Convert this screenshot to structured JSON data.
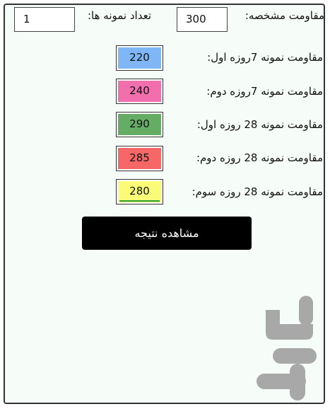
{
  "header": {
    "specified_strength_label": "مقاومت مشخصه:",
    "specified_strength_value": "300",
    "sample_count_label": "تعداد نمونه ها:",
    "sample_count_value": "1"
  },
  "samples": [
    {
      "label": "مقاومت نمونه 7روزه اول:",
      "value": "220",
      "color": "#7fb6f5"
    },
    {
      "label": "مقاومت نمونه 7روزه دوم:",
      "value": "240",
      "color": "#f26fae"
    },
    {
      "label": "مقاومت نمونه 28 روزه اول:",
      "value": "290",
      "color": "#65ad65"
    },
    {
      "label": "مقاومت نمونه 28 روزه دوم:",
      "value": "285",
      "color": "#f86767"
    },
    {
      "label": "مقاومت نمونه 28 روزه سوم:",
      "value": "280",
      "color": "#fafc78"
    }
  ],
  "action": {
    "show_result_label": "مشاهده نتیجه"
  },
  "watermark": {
    "icon": "bazaar-logo-icon",
    "color": "#a8a8a8"
  }
}
